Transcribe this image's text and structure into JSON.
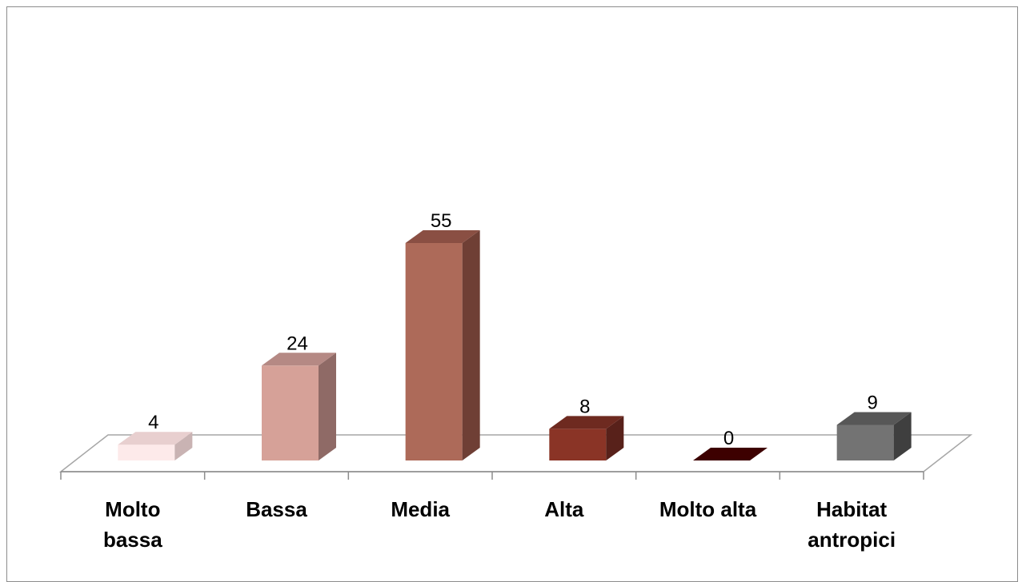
{
  "chart_data": {
    "type": "bar",
    "categories": [
      [
        "Molto",
        "bassa"
      ],
      [
        "Bassa"
      ],
      [
        "Media"
      ],
      [
        "Alta"
      ],
      [
        "Molto alta"
      ],
      [
        "Habitat",
        "antropici"
      ]
    ],
    "values": [
      4,
      24,
      55,
      8,
      0,
      9
    ],
    "value_labels": [
      "4",
      "24",
      "55",
      "8",
      "0",
      "9"
    ],
    "title": "",
    "xlabel": "",
    "ylabel": "",
    "ylim": [
      0,
      60
    ],
    "grid": false,
    "legend": "none",
    "style": "3d-column",
    "colors": [
      {
        "front": "#fdeaea",
        "side": "#c9b3b3",
        "top": "#e8cfcf"
      },
      {
        "front": "#d6a198",
        "side": "#8f6a66",
        "top": "#b58984"
      },
      {
        "front": "#ad6a59",
        "side": "#6f3f35",
        "top": "#8a4f43"
      },
      {
        "front": "#8a3426",
        "side": "#58211a",
        "top": "#6e2a20"
      },
      {
        "front": "#3d0000",
        "side": "#2a0000",
        "top": "#4a0000"
      },
      {
        "front": "#737373",
        "side": "#3f3f3f",
        "top": "#575757"
      }
    ],
    "floor_color": "#a6a6a6"
  }
}
